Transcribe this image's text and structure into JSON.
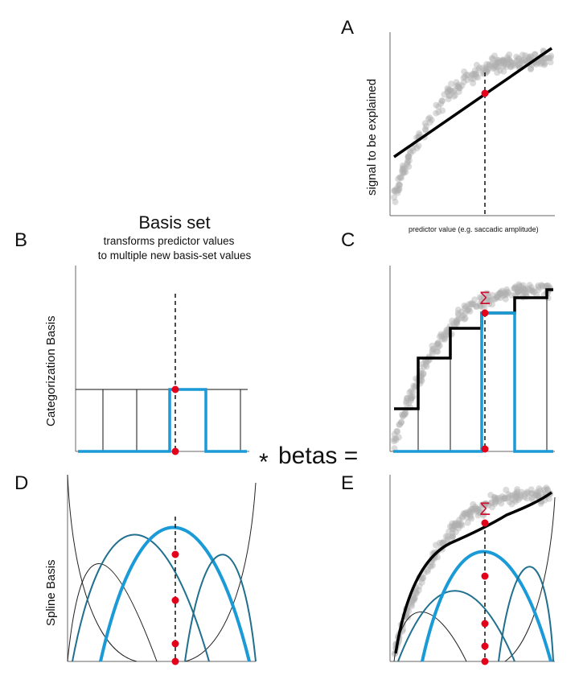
{
  "panels": {
    "A": {
      "letter": "A",
      "ylabel": "signal to be explained",
      "xlabel": "predictor value (e.g. saccadic amplitude)"
    },
    "B": {
      "letter": "B",
      "ylabel": "Categorization Basis"
    },
    "C": {
      "letter": "C",
      "sigma": "Σ"
    },
    "D": {
      "letter": "D",
      "ylabel": "Spline Basis"
    },
    "E": {
      "letter": "E",
      "sigma": "Σ"
    }
  },
  "basis_set": {
    "title": "Basis set",
    "subtitle_line1": "transforms predictor values",
    "subtitle_line2": "to multiple new basis-set values"
  },
  "equation": {
    "star": "*",
    "text": "betas ="
  },
  "colors": {
    "highlight_blue": "#1a9ad6",
    "spline_teal": "#1f6f8f",
    "spline_thin": "#222222",
    "red_dot": "#e3001b",
    "sigma_red": "#cc1133",
    "scatter_gray": "#b0b0b0",
    "axis": "#666666",
    "fit_line": "#000000"
  },
  "icons": {
    "sum": "sigma-symbol",
    "marker": "red-dot-marker"
  }
}
